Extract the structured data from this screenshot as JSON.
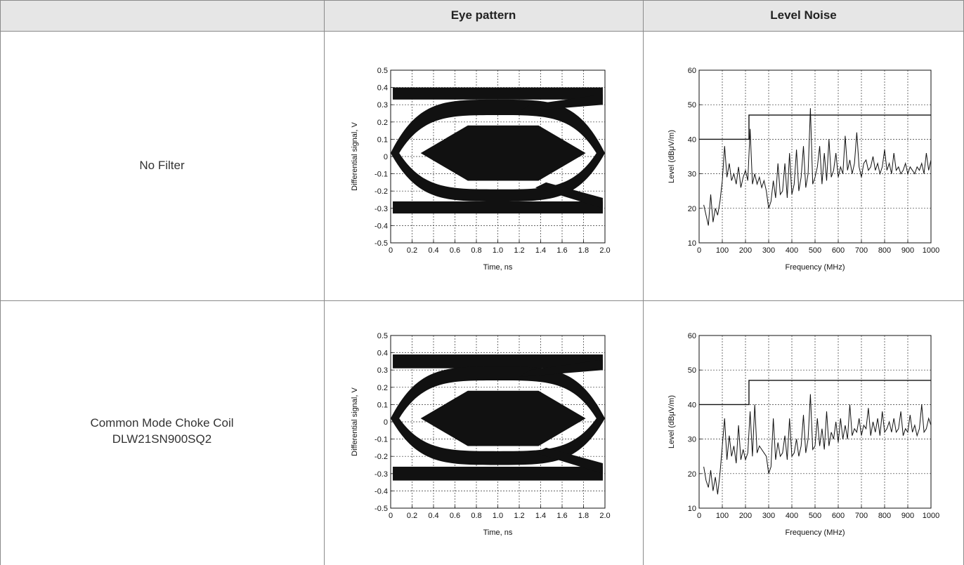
{
  "header": {
    "eye_pattern": "Eye pattern",
    "level_noise": "Level Noise"
  },
  "rows": [
    {
      "label_line1": "No Filter",
      "label_line2": ""
    },
    {
      "label_line1": "Common Mode Choke Coil",
      "label_line2": "DLW21SN900SQ2"
    }
  ],
  "chart_data": [
    {
      "type": "line",
      "panel": "eye-pattern-no-filter",
      "xlabel": "Time, ns",
      "ylabel": "Differential signal, V",
      "xlim": [
        0,
        2.0
      ],
      "ylim": [
        -0.5,
        0.5
      ],
      "xticks": [
        "0",
        "0.2",
        "0.4",
        "0.6",
        "0.8",
        "1.0",
        "1.2",
        "1.4",
        "1.6",
        "1.8",
        "2.0"
      ],
      "yticks": [
        "0.5",
        "0.4",
        "0.3",
        "0.2",
        "0.1",
        "0",
        "-0.1",
        "-0.2",
        "-0.3",
        "-0.4",
        "-0.5"
      ],
      "grid": true,
      "rails": {
        "high": [
          0.33,
          0.4
        ],
        "low": [
          -0.33,
          -0.26
        ]
      },
      "eye_outer": {
        "top": [
          0.24,
          0.33
        ],
        "bottom": [
          -0.26,
          -0.19
        ]
      },
      "eye_opening": {
        "x": [
          0.28,
          1.82
        ],
        "y": [
          -0.14,
          0.18
        ]
      }
    },
    {
      "type": "line",
      "panel": "level-noise-no-filter",
      "xlabel": "Frequency (MHz)",
      "ylabel": "Level (dBμV/m)",
      "xlim": [
        0,
        1000
      ],
      "ylim": [
        10,
        60
      ],
      "xticks": [
        "0",
        "100",
        "200",
        "300",
        "400",
        "500",
        "600",
        "700",
        "800",
        "900",
        "1000"
      ],
      "yticks": [
        "60",
        "50",
        "40",
        "30",
        "20",
        "10"
      ],
      "grid": true,
      "limit_line": {
        "x": [
          0,
          215,
          215,
          1000
        ],
        "y": [
          40,
          40,
          47,
          47
        ]
      },
      "x": [
        20,
        30,
        40,
        50,
        60,
        70,
        80,
        90,
        100,
        110,
        120,
        130,
        140,
        150,
        160,
        170,
        180,
        190,
        200,
        210,
        220,
        230,
        240,
        250,
        260,
        270,
        280,
        290,
        300,
        310,
        320,
        330,
        340,
        350,
        360,
        370,
        380,
        390,
        400,
        410,
        420,
        430,
        440,
        450,
        460,
        470,
        480,
        490,
        500,
        510,
        520,
        530,
        540,
        550,
        560,
        570,
        580,
        590,
        600,
        610,
        620,
        630,
        640,
        650,
        660,
        670,
        680,
        690,
        700,
        710,
        720,
        730,
        740,
        750,
        760,
        770,
        780,
        790,
        800,
        810,
        820,
        830,
        840,
        850,
        860,
        870,
        880,
        890,
        900,
        910,
        920,
        930,
        940,
        950,
        960,
        970,
        980,
        990,
        1000
      ],
      "values": [
        21,
        18,
        15,
        24,
        16,
        20,
        18,
        22,
        28,
        38,
        29,
        33,
        28,
        30,
        27,
        32,
        26,
        29,
        31,
        28,
        43,
        27,
        30,
        27,
        29,
        26,
        28,
        25,
        20,
        22,
        28,
        23,
        33,
        24,
        25,
        33,
        23,
        36,
        24,
        27,
        37,
        25,
        29,
        38,
        26,
        30,
        49,
        27,
        29,
        32,
        38,
        27,
        36,
        28,
        40,
        29,
        31,
        36,
        29,
        32,
        30,
        41,
        31,
        34,
        30,
        33,
        42,
        32,
        29,
        33,
        34,
        31,
        32,
        35,
        31,
        33,
        30,
        32,
        37,
        31,
        33,
        30,
        36,
        31,
        32,
        30,
        31,
        33,
        30,
        32,
        31,
        30,
        32,
        31,
        33,
        30,
        36,
        31,
        34
      ]
    },
    {
      "type": "line",
      "panel": "eye-pattern-choke-coil",
      "xlabel": "Time, ns",
      "ylabel": "Differential signal, V",
      "xlim": [
        0,
        2.0
      ],
      "ylim": [
        -0.5,
        0.5
      ],
      "xticks": [
        "0",
        "0.2",
        "0.4",
        "0.6",
        "0.8",
        "1.0",
        "1.2",
        "1.4",
        "1.6",
        "1.8",
        "2.0"
      ],
      "yticks": [
        "0.5",
        "0.4",
        "0.3",
        "0.2",
        "0.1",
        "0",
        "-0.1",
        "-0.2",
        "-0.3",
        "-0.4",
        "-0.5"
      ],
      "grid": true,
      "rails": {
        "high": [
          0.31,
          0.39
        ],
        "low": [
          -0.34,
          -0.26
        ]
      },
      "eye_outer": {
        "top": [
          0.24,
          0.32
        ],
        "bottom": [
          -0.25,
          -0.17
        ]
      },
      "eye_opening": {
        "x": [
          0.28,
          1.82
        ],
        "y": [
          -0.14,
          0.18
        ]
      }
    },
    {
      "type": "line",
      "panel": "level-noise-choke-coil",
      "xlabel": "Frequency (MHz)",
      "ylabel": "Level (dBμV/m)",
      "xlim": [
        0,
        1000
      ],
      "ylim": [
        10,
        60
      ],
      "xticks": [
        "0",
        "100",
        "200",
        "300",
        "400",
        "500",
        "600",
        "700",
        "800",
        "900",
        "1000"
      ],
      "yticks": [
        "60",
        "50",
        "40",
        "30",
        "20",
        "10"
      ],
      "grid": true,
      "limit_line": {
        "x": [
          0,
          215,
          215,
          1000
        ],
        "y": [
          40,
          40,
          47,
          47
        ]
      },
      "x": [
        20,
        30,
        40,
        50,
        60,
        70,
        80,
        90,
        100,
        110,
        120,
        130,
        140,
        150,
        160,
        170,
        180,
        190,
        200,
        210,
        220,
        230,
        240,
        250,
        260,
        270,
        280,
        290,
        300,
        310,
        320,
        330,
        340,
        350,
        360,
        370,
        380,
        390,
        400,
        410,
        420,
        430,
        440,
        450,
        460,
        470,
        480,
        490,
        500,
        510,
        520,
        530,
        540,
        550,
        560,
        570,
        580,
        590,
        600,
        610,
        620,
        630,
        640,
        650,
        660,
        670,
        680,
        690,
        700,
        710,
        720,
        730,
        740,
        750,
        760,
        770,
        780,
        790,
        800,
        810,
        820,
        830,
        840,
        850,
        860,
        870,
        880,
        890,
        900,
        910,
        920,
        930,
        940,
        950,
        960,
        970,
        980,
        990,
        1000
      ],
      "values": [
        22,
        18,
        16,
        21,
        15,
        19,
        14,
        20,
        28,
        36,
        24,
        31,
        25,
        28,
        23,
        34,
        24,
        27,
        24,
        26,
        38,
        25,
        40,
        26,
        28,
        27,
        26,
        25,
        20,
        22,
        36,
        24,
        29,
        25,
        26,
        31,
        24,
        36,
        25,
        26,
        30,
        25,
        28,
        37,
        26,
        30,
        43,
        27,
        28,
        36,
        28,
        33,
        27,
        38,
        28,
        32,
        30,
        35,
        29,
        36,
        30,
        34,
        30,
        40,
        31,
        33,
        32,
        36,
        31,
        34,
        33,
        39,
        31,
        35,
        32,
        36,
        31,
        38,
        32,
        33,
        35,
        32,
        36,
        32,
        33,
        38,
        31,
        33,
        32,
        37,
        32,
        34,
        31,
        33,
        40,
        32,
        33,
        36,
        34
      ]
    }
  ]
}
